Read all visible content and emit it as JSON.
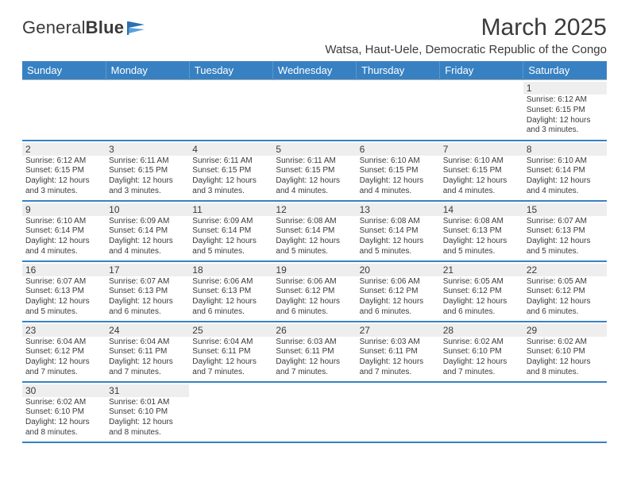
{
  "brand": {
    "name1": "General",
    "name2": "Blue",
    "flag_color": "#3781c2"
  },
  "title": "March 2025",
  "subtitle": "Watsa, Haut-Uele, Democratic Republic of the Congo",
  "colors": {
    "header_bg": "#3781c2",
    "header_text": "#ffffff",
    "row_divider": "#b8b8b8",
    "row_bottom": "#3781c2",
    "daynum_bg": "#eeeeee",
    "text": "#3a3a3a"
  },
  "dayNames": [
    "Sunday",
    "Monday",
    "Tuesday",
    "Wednesday",
    "Thursday",
    "Friday",
    "Saturday"
  ],
  "weeks": [
    [
      null,
      null,
      null,
      null,
      null,
      null,
      {
        "n": "1",
        "sr": "6:12 AM",
        "ss": "6:15 PM",
        "dl": "12 hours and 3 minutes."
      }
    ],
    [
      {
        "n": "2",
        "sr": "6:12 AM",
        "ss": "6:15 PM",
        "dl": "12 hours and 3 minutes."
      },
      {
        "n": "3",
        "sr": "6:11 AM",
        "ss": "6:15 PM",
        "dl": "12 hours and 3 minutes."
      },
      {
        "n": "4",
        "sr": "6:11 AM",
        "ss": "6:15 PM",
        "dl": "12 hours and 3 minutes."
      },
      {
        "n": "5",
        "sr": "6:11 AM",
        "ss": "6:15 PM",
        "dl": "12 hours and 4 minutes."
      },
      {
        "n": "6",
        "sr": "6:10 AM",
        "ss": "6:15 PM",
        "dl": "12 hours and 4 minutes."
      },
      {
        "n": "7",
        "sr": "6:10 AM",
        "ss": "6:15 PM",
        "dl": "12 hours and 4 minutes."
      },
      {
        "n": "8",
        "sr": "6:10 AM",
        "ss": "6:14 PM",
        "dl": "12 hours and 4 minutes."
      }
    ],
    [
      {
        "n": "9",
        "sr": "6:10 AM",
        "ss": "6:14 PM",
        "dl": "12 hours and 4 minutes."
      },
      {
        "n": "10",
        "sr": "6:09 AM",
        "ss": "6:14 PM",
        "dl": "12 hours and 4 minutes."
      },
      {
        "n": "11",
        "sr": "6:09 AM",
        "ss": "6:14 PM",
        "dl": "12 hours and 5 minutes."
      },
      {
        "n": "12",
        "sr": "6:08 AM",
        "ss": "6:14 PM",
        "dl": "12 hours and 5 minutes."
      },
      {
        "n": "13",
        "sr": "6:08 AM",
        "ss": "6:14 PM",
        "dl": "12 hours and 5 minutes."
      },
      {
        "n": "14",
        "sr": "6:08 AM",
        "ss": "6:13 PM",
        "dl": "12 hours and 5 minutes."
      },
      {
        "n": "15",
        "sr": "6:07 AM",
        "ss": "6:13 PM",
        "dl": "12 hours and 5 minutes."
      }
    ],
    [
      {
        "n": "16",
        "sr": "6:07 AM",
        "ss": "6:13 PM",
        "dl": "12 hours and 5 minutes."
      },
      {
        "n": "17",
        "sr": "6:07 AM",
        "ss": "6:13 PM",
        "dl": "12 hours and 6 minutes."
      },
      {
        "n": "18",
        "sr": "6:06 AM",
        "ss": "6:13 PM",
        "dl": "12 hours and 6 minutes."
      },
      {
        "n": "19",
        "sr": "6:06 AM",
        "ss": "6:12 PM",
        "dl": "12 hours and 6 minutes."
      },
      {
        "n": "20",
        "sr": "6:06 AM",
        "ss": "6:12 PM",
        "dl": "12 hours and 6 minutes."
      },
      {
        "n": "21",
        "sr": "6:05 AM",
        "ss": "6:12 PM",
        "dl": "12 hours and 6 minutes."
      },
      {
        "n": "22",
        "sr": "6:05 AM",
        "ss": "6:12 PM",
        "dl": "12 hours and 6 minutes."
      }
    ],
    [
      {
        "n": "23",
        "sr": "6:04 AM",
        "ss": "6:12 PM",
        "dl": "12 hours and 7 minutes."
      },
      {
        "n": "24",
        "sr": "6:04 AM",
        "ss": "6:11 PM",
        "dl": "12 hours and 7 minutes."
      },
      {
        "n": "25",
        "sr": "6:04 AM",
        "ss": "6:11 PM",
        "dl": "12 hours and 7 minutes."
      },
      {
        "n": "26",
        "sr": "6:03 AM",
        "ss": "6:11 PM",
        "dl": "12 hours and 7 minutes."
      },
      {
        "n": "27",
        "sr": "6:03 AM",
        "ss": "6:11 PM",
        "dl": "12 hours and 7 minutes."
      },
      {
        "n": "28",
        "sr": "6:02 AM",
        "ss": "6:10 PM",
        "dl": "12 hours and 7 minutes."
      },
      {
        "n": "29",
        "sr": "6:02 AM",
        "ss": "6:10 PM",
        "dl": "12 hours and 8 minutes."
      }
    ],
    [
      {
        "n": "30",
        "sr": "6:02 AM",
        "ss": "6:10 PM",
        "dl": "12 hours and 8 minutes."
      },
      {
        "n": "31",
        "sr": "6:01 AM",
        "ss": "6:10 PM",
        "dl": "12 hours and 8 minutes."
      },
      null,
      null,
      null,
      null,
      null
    ]
  ],
  "labels": {
    "sunrise": "Sunrise:",
    "sunset": "Sunset:",
    "daylight": "Daylight:"
  }
}
